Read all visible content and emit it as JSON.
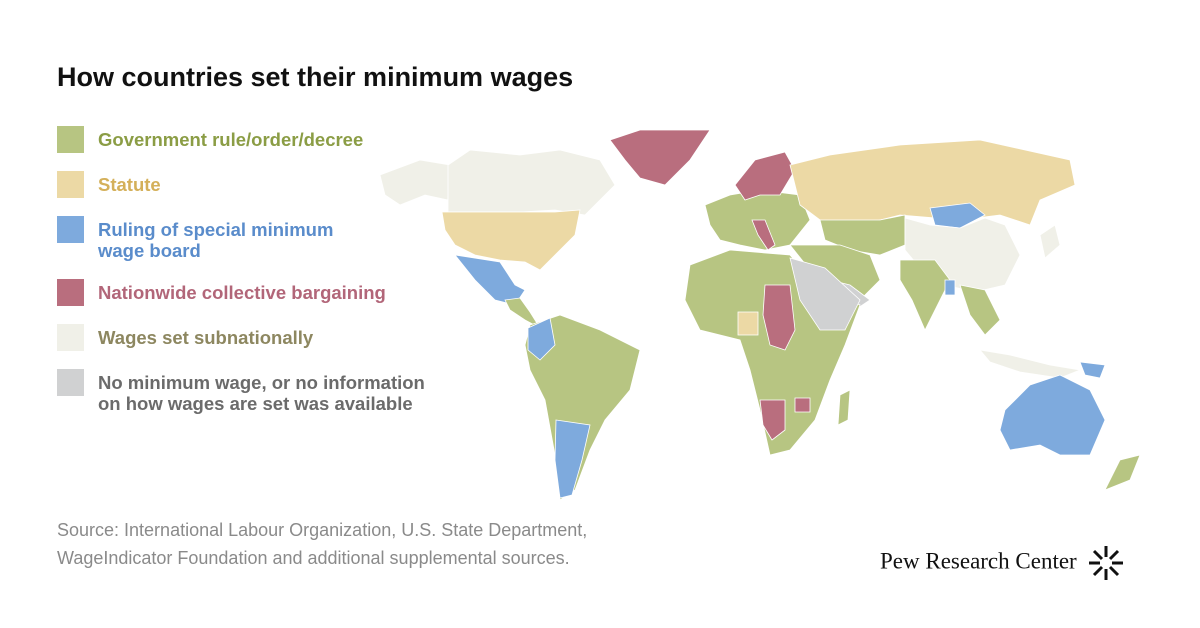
{
  "header": {
    "title": "How countries set their minimum wages"
  },
  "legend": {
    "items": [
      {
        "label_lines": [
          "Government rule/order/decree"
        ],
        "color": "#b7c582",
        "text_color": "#8b9d45"
      },
      {
        "label_lines": [
          "Statute"
        ],
        "color": "#ecd9a5",
        "text_color": "#d4b05a"
      },
      {
        "label_lines": [
          "Ruling of special minimum",
          "wage board"
        ],
        "color": "#7eaadd",
        "text_color": "#5a8ccb"
      },
      {
        "label_lines": [
          "Nationwide collective bargaining"
        ],
        "color": "#b96e7e",
        "text_color": "#b26679"
      },
      {
        "label_lines": [
          "Wages set subnationally"
        ],
        "color": "#f0f0e8",
        "text_color": "#8d8760"
      },
      {
        "label_lines": [
          "No minimum wage, or no information",
          "on how wages are set was available"
        ],
        "color": "#d0d1d2",
        "text_color": "#6b6b6b"
      }
    ]
  },
  "footer": {
    "source_lines": [
      "Source: International Labour Organization, U.S. State Department,",
      "WageIndicator Foundation and additional supplemental sources."
    ],
    "brand": "Pew Research Center"
  }
}
